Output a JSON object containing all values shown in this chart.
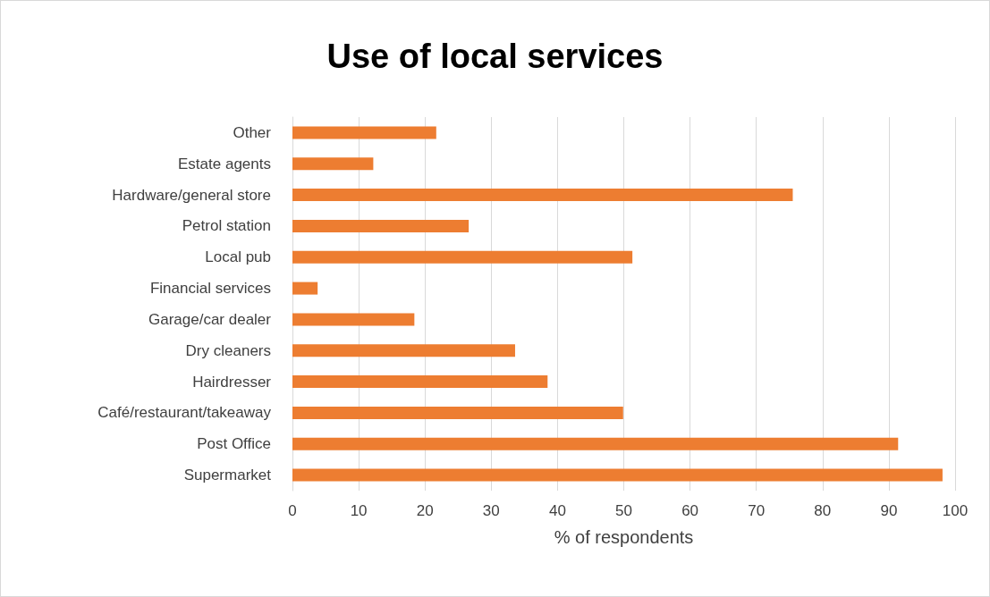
{
  "chart_data": {
    "type": "bar",
    "title": "Use of local services",
    "xlabel": "% of respondents",
    "orientation": "horizontal",
    "categories": [
      "Other",
      "Estate agents",
      "Hardware/general store",
      "Petrol station",
      "Local pub",
      "Financial services",
      "Garage/car dealer",
      "Dry cleaners",
      "Hairdresser",
      "Café/restaurant/takeaway",
      "Post Office",
      "Supermarket"
    ],
    "values": [
      21.7,
      12.2,
      75.5,
      26.6,
      51.3,
      3.8,
      18.4,
      33.6,
      38.5,
      49.9,
      91.4,
      98.1
    ],
    "color": "#ed7d31",
    "xlim": [
      0,
      100
    ],
    "xticks": [
      0,
      10,
      20,
      30,
      40,
      50,
      60,
      70,
      80,
      90,
      100
    ],
    "grid": "x"
  }
}
